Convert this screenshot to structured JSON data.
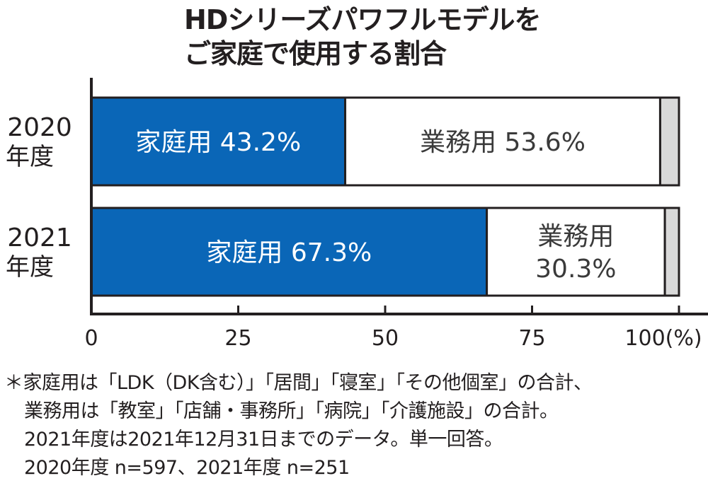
{
  "title": {
    "line1": "HDシリーズパワフルモデルを",
    "line2": "ご家庭で使用する割合"
  },
  "chart_data": {
    "type": "bar",
    "orientation": "horizontal",
    "stacked": true,
    "categories": [
      {
        "line1": "2020",
        "line2": "年度"
      },
      {
        "line1": "2021",
        "line2": "年度"
      }
    ],
    "series": [
      {
        "name": "家庭用",
        "values": [
          43.2,
          67.3
        ],
        "color": "#0a66b7",
        "labels": [
          [
            "家庭用 43.2%"
          ],
          [
            "家庭用 67.3%"
          ]
        ]
      },
      {
        "name": "業務用",
        "values": [
          53.6,
          30.3
        ],
        "color": "#ffffff",
        "labels": [
          [
            "業務用 53.6%"
          ],
          [
            "業務用",
            "30.3%"
          ]
        ]
      },
      {
        "values": [
          3.2,
          2.4
        ],
        "color": "#d9d9d9",
        "labels": [
          [],
          []
        ]
      }
    ],
    "xlim": [
      0,
      100
    ],
    "xticks": [
      "0",
      "25",
      "50",
      "75",
      "100(%)"
    ]
  },
  "notes": {
    "line1": "＊家庭用は「LDK（DK含む）」「居間」「寝室」「その他個室」の合計、",
    "line2": "業務用は「教室」「店舗・事務所」「病院」「介護施設」の合計。",
    "line3": "2021年度は2021年12月31日までのデータ。単一回答。",
    "line4": "2020年度 n=597、2021年度 n=251"
  }
}
